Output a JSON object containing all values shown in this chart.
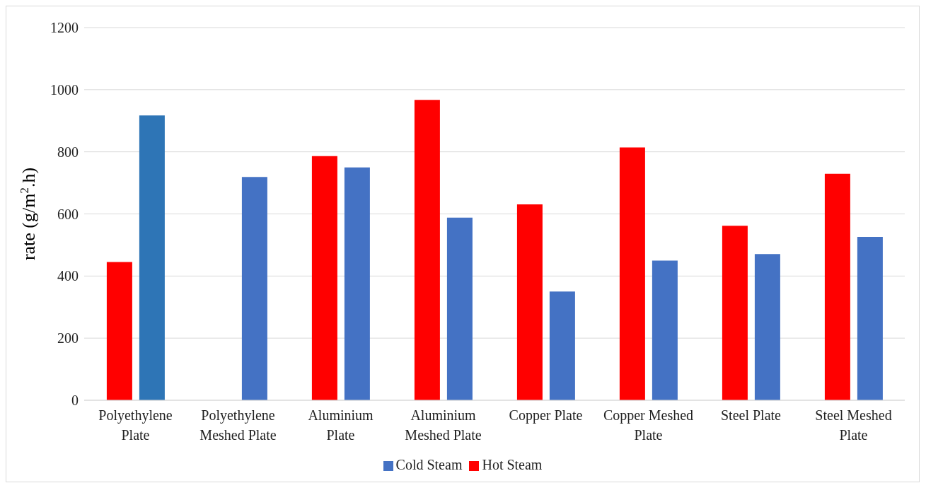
{
  "chart_data": {
    "type": "bar",
    "ylabel": "rate (g/m$^{2}$.h)",
    "categories": [
      "Polyethylene Plate",
      "Polyethylene Meshed Plate",
      "Aluminium Plate",
      "Aluminium Meshed Plate",
      "Copper Plate",
      "Copper Meshed Plate",
      "Steel Plate",
      "Steel Meshed Plate"
    ],
    "series": [
      {
        "name": "Hot Steam",
        "color": "#ff0000",
        "values": [
          445,
          null,
          786,
          967,
          631,
          814,
          562,
          729
        ]
      },
      {
        "name": "Cold Steam",
        "color": "#4472c4",
        "colors": [
          "#2e75b6",
          "#4472c4",
          "#4472c4",
          "#4472c4",
          "#4472c4",
          "#4472c4",
          "#4472c4",
          "#4472c4"
        ],
        "values": [
          917,
          719,
          750,
          588,
          350,
          450,
          471,
          526
        ]
      }
    ],
    "ylim": [
      0,
      1200
    ],
    "yticks": [
      0,
      200,
      400,
      600,
      800,
      1000,
      1200
    ],
    "grid": "y",
    "legend": "bottom"
  }
}
